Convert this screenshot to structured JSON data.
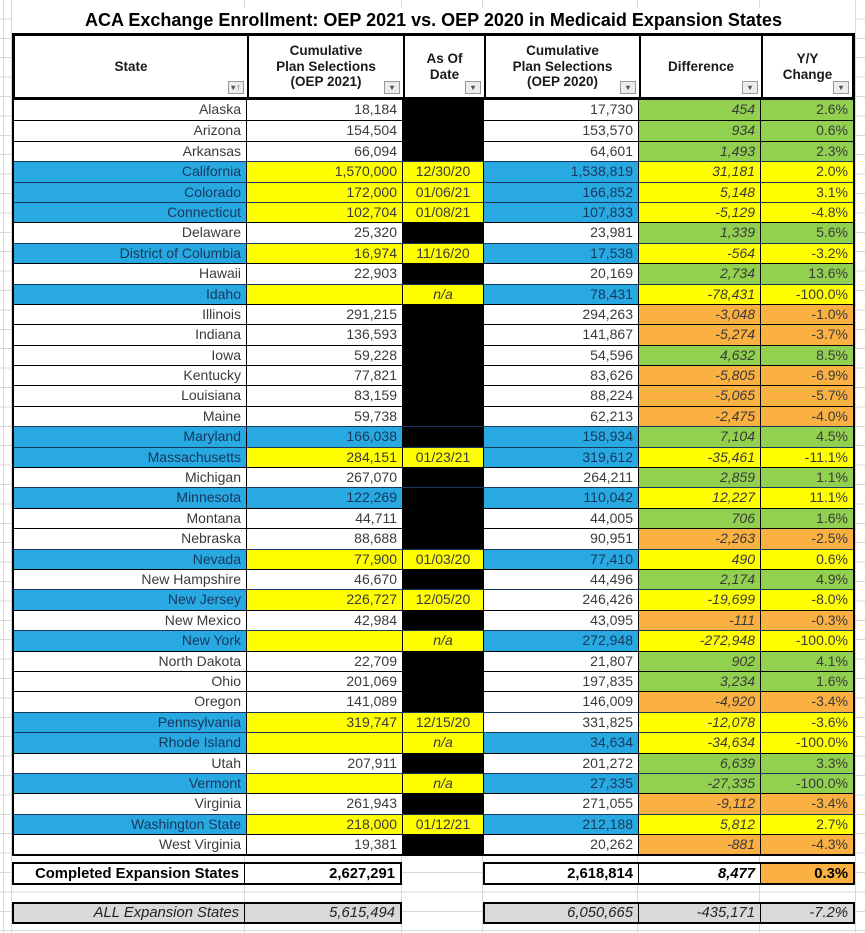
{
  "title": "ACA Exchange Enrollment: OEP 2021 vs. OEP 2020 in Medicaid Expansion States",
  "colors": {
    "highlight_blue": "#29A9E1",
    "highlight_yellow": "#FFFF00",
    "positive_green": "#92D050",
    "negative_orange": "#FBB042",
    "summary_gray": "#D9D9D9",
    "blocked_black": "#000000",
    "navy_text": "#17375D"
  },
  "columns": [
    {
      "lines": [
        "State"
      ],
      "filter": "sort-asc-filter"
    },
    {
      "lines": [
        "Cumulative",
        "Plan Selections",
        "(OEP 2021)"
      ],
      "filter": "dropdown"
    },
    {
      "lines": [
        "As Of",
        "Date"
      ],
      "filter": "dropdown"
    },
    {
      "lines": [
        "Cumulative",
        "Plan Selections",
        "(OEP 2020)"
      ],
      "filter": "dropdown"
    },
    {
      "lines": [
        "Difference"
      ],
      "filter": "dropdown"
    },
    {
      "lines": [
        "Y/Y",
        "Change"
      ],
      "filter": "dropdown"
    }
  ],
  "rows": [
    {
      "state": "Alaska",
      "v2021": "18,184",
      "asof": "",
      "v2020": "17,730",
      "diff": "454",
      "yy": "2.6%",
      "fills": "white|white|black|white|green"
    },
    {
      "state": "Arizona",
      "v2021": "154,504",
      "asof": "",
      "v2020": "153,570",
      "diff": "934",
      "yy": "0.6%",
      "fills": "white|white|black|white|green"
    },
    {
      "state": "Arkansas",
      "v2021": "66,094",
      "asof": "",
      "v2020": "64,601",
      "diff": "1,493",
      "yy": "2.3%",
      "fills": "white|white|black|white|green"
    },
    {
      "state": "California",
      "v2021": "1,570,000",
      "asof": "12/30/20",
      "v2020": "1,538,819",
      "diff": "31,181",
      "yy": "2.0%",
      "fills": "blue|yellow|yellow|blue|yellow"
    },
    {
      "state": "Colorado",
      "v2021": "172,000",
      "asof": "01/06/21",
      "v2020": "166,852",
      "diff": "5,148",
      "yy": "3.1%",
      "fills": "blue|yellow|yellow|blue|yellow"
    },
    {
      "state": "Connecticut",
      "v2021": "102,704",
      "asof": "01/08/21",
      "v2020": "107,833",
      "diff": "-5,129",
      "yy": "-4.8%",
      "fills": "blue|yellow|yellow|blue|yellow"
    },
    {
      "state": "Delaware",
      "v2021": "25,320",
      "asof": "",
      "v2020": "23,981",
      "diff": "1,339",
      "yy": "5.6%",
      "fills": "white|white|black|white|green"
    },
    {
      "state": "District of Columbia",
      "v2021": "16,974",
      "asof": "11/16/20",
      "v2020": "17,538",
      "diff": "-564",
      "yy": "-3.2%",
      "fills": "blue|yellow|yellow|blue|yellow"
    },
    {
      "state": "Hawaii",
      "v2021": "22,903",
      "asof": "",
      "v2020": "20,169",
      "diff": "2,734",
      "yy": "13.6%",
      "fills": "white|white|black|white|green"
    },
    {
      "state": "Idaho",
      "v2021": "",
      "asof": "n/a",
      "v2020": "78,431",
      "diff": "-78,431",
      "yy": "-100.0%",
      "fills": "blue|yellow|yellow|blue|yellow"
    },
    {
      "state": "Illinois",
      "v2021": "291,215",
      "asof": "",
      "v2020": "294,263",
      "diff": "-3,048",
      "yy": "-1.0%",
      "fills": "white|white|black|white|orange"
    },
    {
      "state": "Indiana",
      "v2021": "136,593",
      "asof": "",
      "v2020": "141,867",
      "diff": "-5,274",
      "yy": "-3.7%",
      "fills": "white|white|black|white|orange"
    },
    {
      "state": "Iowa",
      "v2021": "59,228",
      "asof": "",
      "v2020": "54,596",
      "diff": "4,632",
      "yy": "8.5%",
      "fills": "white|white|black|white|green"
    },
    {
      "state": "Kentucky",
      "v2021": "77,821",
      "asof": "",
      "v2020": "83,626",
      "diff": "-5,805",
      "yy": "-6.9%",
      "fills": "white|white|black|white|orange"
    },
    {
      "state": "Louisiana",
      "v2021": "83,159",
      "asof": "",
      "v2020": "88,224",
      "diff": "-5,065",
      "yy": "-5.7%",
      "fills": "white|white|black|white|orange"
    },
    {
      "state": "Maine",
      "v2021": "59,738",
      "asof": "",
      "v2020": "62,213",
      "diff": "-2,475",
      "yy": "-4.0%",
      "fills": "white|white|black|white|orange"
    },
    {
      "state": "Maryland",
      "v2021": "166,038",
      "asof": "",
      "v2020": "158,934",
      "diff": "7,104",
      "yy": "4.5%",
      "fills": "blue|blue|black|blue|green"
    },
    {
      "state": "Massachusetts",
      "v2021": "284,151",
      "asof": "01/23/21",
      "v2020": "319,612",
      "diff": "-35,461",
      "yy": "-11.1%",
      "fills": "blue|yellow|yellow|blue|yellow"
    },
    {
      "state": "Michigan",
      "v2021": "267,070",
      "asof": "",
      "v2020": "264,211",
      "diff": "2,859",
      "yy": "1.1%",
      "fills": "white|white|black|white|green"
    },
    {
      "state": "Minnesota",
      "v2021": "122,269",
      "asof": "",
      "v2020": "110,042",
      "diff": "12,227",
      "yy": "11.1%",
      "fills": "blue|blue|black|blue|yellow"
    },
    {
      "state": "Montana",
      "v2021": "44,711",
      "asof": "",
      "v2020": "44,005",
      "diff": "706",
      "yy": "1.6%",
      "fills": "white|white|black|white|green"
    },
    {
      "state": "Nebraska",
      "v2021": "88,688",
      "asof": "",
      "v2020": "90,951",
      "diff": "-2,263",
      "yy": "-2.5%",
      "fills": "white|white|black|white|orange"
    },
    {
      "state": "Nevada",
      "v2021": "77,900",
      "asof": "01/03/20",
      "v2020": "77,410",
      "diff": "490",
      "yy": "0.6%",
      "fills": "blue|yellow|yellow|blue|yellow"
    },
    {
      "state": "New Hampshire",
      "v2021": "46,670",
      "asof": "",
      "v2020": "44,496",
      "diff": "2,174",
      "yy": "4.9%",
      "fills": "white|white|black|white|green"
    },
    {
      "state": "New Jersey",
      "v2021": "226,727",
      "asof": "12/05/20",
      "v2020": "246,426",
      "diff": "-19,699",
      "yy": "-8.0%",
      "fills": "blue|yellow|yellow|white|yellow"
    },
    {
      "state": "New Mexico",
      "v2021": "42,984",
      "asof": "",
      "v2020": "43,095",
      "diff": "-111",
      "yy": "-0.3%",
      "fills": "white|white|black|white|orange"
    },
    {
      "state": "New York",
      "v2021": "",
      "asof": "n/a",
      "v2020": "272,948",
      "diff": "-272,948",
      "yy": "-100.0%",
      "fills": "blue|yellow|yellow|blue|yellow"
    },
    {
      "state": "North Dakota",
      "v2021": "22,709",
      "asof": "",
      "v2020": "21,807",
      "diff": "902",
      "yy": "4.1%",
      "fills": "white|white|black|white|green"
    },
    {
      "state": "Ohio",
      "v2021": "201,069",
      "asof": "",
      "v2020": "197,835",
      "diff": "3,234",
      "yy": "1.6%",
      "fills": "white|white|black|white|green"
    },
    {
      "state": "Oregon",
      "v2021": "141,089",
      "asof": "",
      "v2020": "146,009",
      "diff": "-4,920",
      "yy": "-3.4%",
      "fills": "white|white|black|white|orange"
    },
    {
      "state": "Pennsylvania",
      "v2021": "319,747",
      "asof": "12/15/20",
      "v2020": "331,825",
      "diff": "-12,078",
      "yy": "-3.6%",
      "fills": "blue|yellow|yellow|white|yellow"
    },
    {
      "state": "Rhode Island",
      "v2021": "",
      "asof": "n/a",
      "v2020": "34,634",
      "diff": "-34,634",
      "yy": "-100.0%",
      "fills": "blue|yellow|yellow|blue|yellow"
    },
    {
      "state": "Utah",
      "v2021": "207,911",
      "asof": "",
      "v2020": "201,272",
      "diff": "6,639",
      "yy": "3.3%",
      "fills": "white|white|black|white|green"
    },
    {
      "state": "Vermont",
      "v2021": "",
      "asof": "n/a",
      "v2020": "27,335",
      "diff": "-27,335",
      "yy": "-100.0%",
      "fills": "blue|yellow|yellow|blue|green"
    },
    {
      "state": "Virginia",
      "v2021": "261,943",
      "asof": "",
      "v2020": "271,055",
      "diff": "-9,112",
      "yy": "-3.4%",
      "fills": "white|white|black|white|orange"
    },
    {
      "state": "Washington State",
      "v2021": "218,000",
      "asof": "01/12/21",
      "v2020": "212,188",
      "diff": "5,812",
      "yy": "2.7%",
      "fills": "blue|yellow|yellow|blue|yellow"
    },
    {
      "state": "West Virginia",
      "v2021": "19,381",
      "asof": "",
      "v2020": "20,262",
      "diff": "-881",
      "yy": "-4.3%",
      "fills": "white|white|black|white|orange"
    }
  ],
  "summary": {
    "completed": {
      "label": "Completed Expansion States",
      "v2021": "2,627,291",
      "v2020": "2,618,814",
      "diff": "8,477",
      "yy": "0.3%"
    },
    "all": {
      "label": "ALL Expansion States",
      "v2021": "5,615,494",
      "v2020": "6,050,665",
      "diff": "-435,171",
      "yy": "-7.2%"
    }
  }
}
